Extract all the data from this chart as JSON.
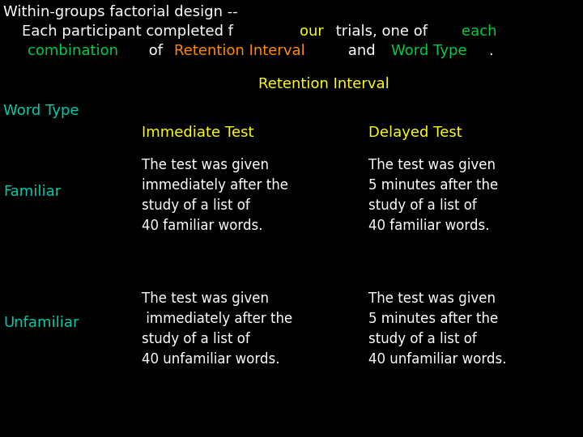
{
  "bg_color": "#000000",
  "white": "#ffffff",
  "yellow": "#ffff00",
  "green": "#00cc44",
  "orange": "#ff8c00",
  "teal": "#00ccaa",
  "font_family": "DejaVu Sans",
  "font_size_title": 13,
  "font_size_body": 12,
  "font_size_header": 13,
  "title_line1": "Within-groups factorial design --",
  "retention_label": "Retention Interval",
  "word_type_label": "Word Type",
  "immediate_label": "Immediate Test",
  "delayed_label": "Delayed Test",
  "familiar_label": "Familiar",
  "unfamiliar_label": "Unfamiliar",
  "cell_imm_fam": "The test was given\nimmediately after the\nstudy of a list of\n40 familiar words.",
  "cell_del_fam": "The test was given\n5 minutes after the\nstudy of a list of\n40 familiar words.",
  "cell_imm_unf": "The test was given\n immediately after the\nstudy of a list of\n40 unfamiliar words.",
  "cell_del_unf": "The test was given\n5 minutes after the\nstudy of a list of\n40 unfamiliar words.",
  "title_segments_line2": [
    {
      "text": "    Each participant completed f",
      "color": "#ffffff"
    },
    {
      "text": "our",
      "color": "#ffff00"
    },
    {
      "text": " trials, one of ",
      "color": "#ffffff"
    },
    {
      "text": "each",
      "color": "#00cc44"
    }
  ],
  "title_segments_line3": [
    {
      "text": "    ",
      "color": "#ffffff"
    },
    {
      "text": "combination",
      "color": "#00cc44"
    },
    {
      "text": " of ",
      "color": "#ffffff"
    },
    {
      "text": "Retention Interval",
      "color": "#ff8c00"
    },
    {
      "text": " and ",
      "color": "#ffffff"
    },
    {
      "text": "Word Type",
      "color": "#00cc44"
    },
    {
      "text": ".",
      "color": "#ffffff"
    }
  ]
}
